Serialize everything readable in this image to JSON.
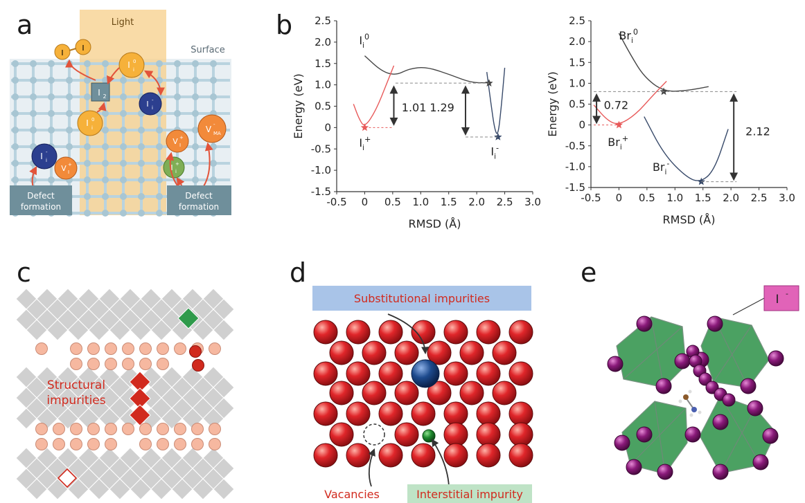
{
  "panels": {
    "a": {
      "letter": "a",
      "light_label": "Light",
      "surface_label": "Surface",
      "defect_formation_left": [
        "Defect",
        "formation"
      ],
      "defect_formation_right": [
        "Defect",
        "formation"
      ],
      "i2_label": "I",
      "i2_sub": "2",
      "i_atoms": [
        "I",
        "I"
      ],
      "species": {
        "ii0_top": {
          "base": "I",
          "sub": "i",
          "sup": "0"
        },
        "ii0_mid": {
          "base": "I",
          "sub": "i",
          "sup": "0"
        },
        "ii_minus_center": {
          "base": "I",
          "sub": "i",
          "sup": "-"
        },
        "ii_minus_left": {
          "base": "I",
          "sub": "i",
          "sup": "-"
        },
        "vi_left": {
          "base": "V",
          "sub": "I",
          "sup": "+"
        },
        "vi_right": {
          "base": "V",
          "sub": "I",
          "sup": "+"
        },
        "vma": {
          "base": "V",
          "sub": "MA",
          "sup": "-"
        },
        "ii_green": {
          "base": "I",
          "sub": "i",
          "sup": "+"
        }
      },
      "colors": {
        "light": "#f7cf8a",
        "grid": "#b9d3df",
        "yellow": "#f6b13a",
        "blue": "#2c3f8f",
        "orange": "#f28a3a",
        "green": "#7fae55",
        "arrow": "#e2533a",
        "box": "#6f8f9b"
      }
    },
    "b": {
      "letter": "b",
      "chart_data": [
        {
          "type": "line",
          "xlabel": "RMSD (Å)",
          "ylabel": "Energy (eV)",
          "xlim": [
            -0.5,
            3.0
          ],
          "ylim": [
            -1.5,
            2.5
          ],
          "xticks": [
            "-0.5",
            "0",
            "0.5",
            "1.0",
            "1.5",
            "2.0",
            "2.5",
            "3.0"
          ],
          "yticks": [
            "2.5",
            "2.0",
            "1.5",
            "1.0",
            "0.5",
            "0",
            "-0.5",
            "-1.0",
            "-1.5"
          ],
          "series": [
            {
              "color": "#444",
              "x": [
                0.0,
                0.3,
                0.55,
                0.8,
                1.1,
                1.5,
                1.9,
                2.2
              ],
              "y": [
                1.68,
                1.32,
                1.22,
                1.38,
                1.42,
                1.25,
                1.05,
                1.05
              ]
            },
            {
              "color": "#e85a5a",
              "x": [
                -0.2,
                -0.1,
                0.0,
                0.2,
                0.4,
                0.52
              ],
              "y": [
                0.55,
                0.2,
                0.0,
                0.4,
                1.05,
                1.45
              ]
            },
            {
              "color": "#384a6a",
              "x": [
                2.18,
                2.25,
                2.32,
                2.38,
                2.44,
                2.5
              ],
              "y": [
                1.3,
                0.6,
                -0.05,
                -0.2,
                0.5,
                1.4
              ]
            }
          ],
          "markers": [
            {
              "x": 0.0,
              "y": 0.0,
              "color": "#e85a5a"
            },
            {
              "x": 2.22,
              "y": 1.04,
              "color": "#444"
            },
            {
              "x": 2.38,
              "y": -0.22,
              "color": "#384a6a"
            }
          ],
          "annotations": [
            "1.01",
            "1.29"
          ],
          "species_labels": [
            {
              "base": "I",
              "sub": "i",
              "sup": "0"
            },
            {
              "base": "I",
              "sub": "i",
              "sup": "+"
            },
            {
              "base": "I",
              "sub": "i",
              "sup": "-"
            }
          ]
        },
        {
          "type": "line",
          "xlabel": "RMSD (Å)",
          "ylabel": "Energy (eV)",
          "xlim": [
            -0.5,
            3.0
          ],
          "ylim": [
            -1.5,
            2.5
          ],
          "xticks": [
            "-0.5",
            "0",
            "0.5",
            "1.0",
            "1.5",
            "2.0",
            "2.5",
            "3.0"
          ],
          "yticks": [
            "2.5",
            "2.0",
            "1.5",
            "1.0",
            "0.5",
            "0",
            "-0.5",
            "-1.0",
            "-1.5"
          ],
          "series": [
            {
              "color": "#444",
              "x": [
                0.0,
                0.2,
                0.45,
                0.8,
                1.2,
                1.6
              ],
              "y": [
                2.2,
                1.7,
                1.15,
                0.8,
                0.82,
                0.92
              ]
            },
            {
              "color": "#e85a5a",
              "x": [
                -0.45,
                -0.2,
                0.0,
                0.3,
                0.6,
                0.85
              ],
              "y": [
                0.48,
                0.1,
                0.0,
                0.25,
                0.7,
                1.05
              ]
            },
            {
              "color": "#384a6a",
              "x": [
                0.45,
                0.8,
                1.2,
                1.45,
                1.7,
                1.95
              ],
              "y": [
                0.2,
                -0.7,
                -1.25,
                -1.38,
                -1.1,
                -0.1
              ]
            }
          ],
          "markers": [
            {
              "x": 0.0,
              "y": 0.0,
              "color": "#e85a5a"
            },
            {
              "x": 0.8,
              "y": 0.8,
              "color": "#444"
            },
            {
              "x": 1.47,
              "y": -1.36,
              "color": "#384a6a"
            }
          ],
          "annotations": [
            "0.72",
            "2.12"
          ],
          "species_labels": [
            {
              "base": "Br",
              "sub": "i",
              "sup": "0"
            },
            {
              "base": "Br",
              "sub": "i",
              "sup": "+"
            },
            {
              "base": "Br",
              "sub": "i",
              "sup": "-"
            }
          ]
        }
      ]
    },
    "c": {
      "letter": "c",
      "label_line1": "Structural",
      "label_line2": "impurities",
      "colors": {
        "tile": "#d0d0d0",
        "bead": "#f6b8a0",
        "red": "#d12a1e",
        "green": "#2f9a4b"
      }
    },
    "d": {
      "letter": "d",
      "substitutional_label": "Substitutional impurities",
      "vacancies_label": "Vacancies",
      "interstitial_label": "Interstitial impurity",
      "colors": {
        "atom": "#e0262a",
        "blue": "#1d4a8d",
        "green": "#1f8a2f",
        "subst_bg": "#a9c4e8",
        "inter_bg": "#bfe3c6"
      }
    },
    "e": {
      "letter": "e",
      "ion_label": "I",
      "ion_sup": "-",
      "colors": {
        "octa": "#3c9a55",
        "atom": "#8a1a7a",
        "label_bg": "#e163b8"
      }
    }
  }
}
